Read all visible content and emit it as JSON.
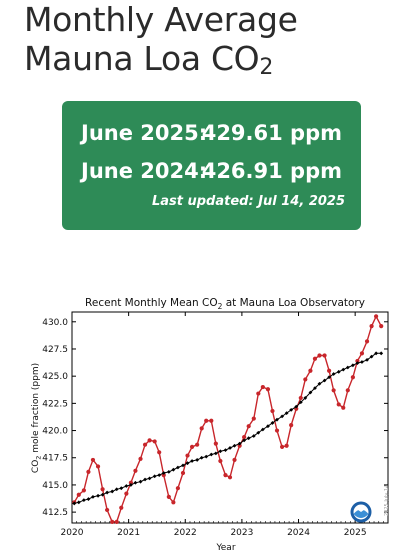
{
  "page": {
    "title_main": "Monthly Average Mauna Loa CO",
    "title_sub": "2"
  },
  "panel": {
    "row1_label": "June 2025:",
    "row1_value": "429.61 ppm",
    "row2_label": "June 2024:",
    "row2_value": "426.91 ppm",
    "last_updated": "Last updated: Jul 14, 2025"
  },
  "logo": {
    "icon": "noaa-logo"
  },
  "colors": {
    "panel": "#2e8b57",
    "monthly": "#c8262b",
    "trend": "#000000"
  },
  "chart_data": {
    "type": "line",
    "title_main": "Recent Monthly Mean CO",
    "title_sub": "2",
    "title_rest": " at Mauna Loa Observatory",
    "xlabel": "Year",
    "ylabel_main": "CO",
    "ylabel_sub": "2",
    "ylabel_rest": " mole fraction (ppm)",
    "watermark": "2025 July 14",
    "xlim": [
      2020.0,
      2025.58
    ],
    "ylim": [
      411.5,
      430.9
    ],
    "x_ticks": [
      2020,
      2021,
      2022,
      2023,
      2024,
      2025
    ],
    "y_ticks": [
      412.5,
      415.0,
      417.5,
      420.0,
      422.5,
      425.0,
      427.5,
      430.0
    ],
    "grid": false,
    "series": [
      {
        "color": "#c8262b",
        "marker": "circle",
        "x": [
          2020.04,
          2020.12,
          2020.21,
          2020.29,
          2020.37,
          2020.46,
          2020.54,
          2020.62,
          2020.71,
          2020.79,
          2020.87,
          2020.96,
          2021.04,
          2021.12,
          2021.21,
          2021.29,
          2021.37,
          2021.46,
          2021.54,
          2021.62,
          2021.71,
          2021.79,
          2021.87,
          2021.96,
          2022.04,
          2022.12,
          2022.21,
          2022.29,
          2022.37,
          2022.46,
          2022.54,
          2022.62,
          2022.71,
          2022.79,
          2022.87,
          2022.96,
          2023.04,
          2023.12,
          2023.21,
          2023.29,
          2023.37,
          2023.46,
          2023.54,
          2023.62,
          2023.71,
          2023.79,
          2023.87,
          2023.96,
          2024.04,
          2024.12,
          2024.21,
          2024.29,
          2024.37,
          2024.46,
          2024.54,
          2024.62,
          2024.71,
          2024.79,
          2024.87,
          2024.96,
          2025.04,
          2025.12,
          2025.21,
          2025.29,
          2025.37,
          2025.46
        ],
        "y": [
          413.4,
          414.1,
          414.5,
          416.2,
          417.3,
          416.7,
          414.6,
          412.7,
          411.6,
          411.6,
          412.9,
          414.2,
          415.2,
          416.3,
          417.4,
          418.7,
          419.1,
          419.0,
          418.0,
          415.9,
          413.9,
          413.4,
          414.7,
          416.1,
          417.7,
          418.5,
          418.7,
          420.2,
          420.9,
          420.9,
          418.8,
          417.2,
          415.9,
          415.7,
          417.3,
          418.6,
          419.4,
          420.4,
          421.1,
          423.4,
          424.0,
          423.8,
          421.8,
          420.0,
          418.5,
          418.6,
          420.5,
          422.0,
          423.0,
          424.7,
          425.5,
          426.6,
          426.9,
          426.9,
          425.5,
          423.7,
          422.4,
          422.1,
          423.7,
          424.9,
          426.4,
          427.1,
          428.2,
          429.6,
          430.5,
          429.6
        ]
      },
      {
        "color": "#000000",
        "marker": "diamond",
        "x": [
          2020.04,
          2020.12,
          2020.21,
          2020.29,
          2020.37,
          2020.46,
          2020.54,
          2020.62,
          2020.71,
          2020.79,
          2020.87,
          2020.96,
          2021.04,
          2021.12,
          2021.21,
          2021.29,
          2021.37,
          2021.46,
          2021.54,
          2021.62,
          2021.71,
          2021.79,
          2021.87,
          2021.96,
          2022.04,
          2022.12,
          2022.21,
          2022.29,
          2022.37,
          2022.46,
          2022.54,
          2022.62,
          2022.71,
          2022.79,
          2022.87,
          2022.96,
          2023.04,
          2023.12,
          2023.21,
          2023.29,
          2023.37,
          2023.46,
          2023.54,
          2023.62,
          2023.71,
          2023.79,
          2023.87,
          2023.96,
          2024.04,
          2024.12,
          2024.21,
          2024.29,
          2024.37,
          2024.46,
          2024.54,
          2024.62,
          2024.71,
          2024.79,
          2024.87,
          2024.96,
          2025.04,
          2025.12,
          2025.21,
          2025.29,
          2025.37,
          2025.46
        ],
        "y": [
          413.3,
          413.4,
          413.6,
          413.7,
          413.9,
          414.0,
          414.1,
          414.3,
          414.4,
          414.6,
          414.7,
          414.9,
          415.0,
          415.2,
          415.3,
          415.5,
          415.6,
          415.8,
          415.9,
          416.1,
          416.2,
          416.4,
          416.6,
          416.8,
          417.0,
          417.2,
          417.3,
          417.5,
          417.6,
          417.8,
          417.9,
          418.1,
          418.2,
          418.4,
          418.6,
          418.8,
          419.1,
          419.3,
          419.5,
          419.8,
          420.1,
          420.4,
          420.7,
          421.0,
          421.3,
          421.6,
          421.9,
          422.2,
          422.6,
          423.0,
          423.5,
          423.9,
          424.3,
          424.6,
          424.9,
          425.2,
          425.4,
          425.6,
          425.8,
          426.0,
          426.2,
          426.3,
          426.5,
          426.8,
          427.1,
          427.1
        ]
      }
    ]
  }
}
